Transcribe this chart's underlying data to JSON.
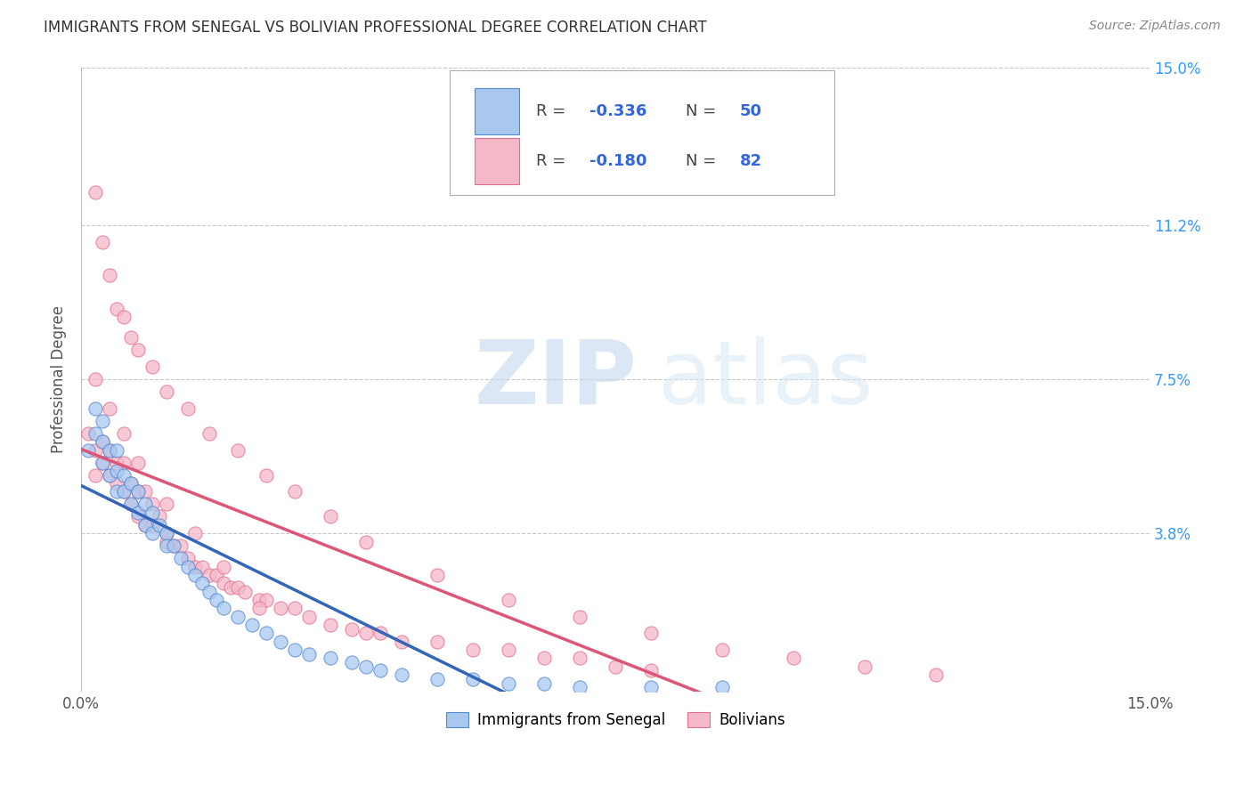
{
  "title": "IMMIGRANTS FROM SENEGAL VS BOLIVIAN PROFESSIONAL DEGREE CORRELATION CHART",
  "source": "Source: ZipAtlas.com",
  "ylabel": "Professional Degree",
  "y_ticks": [
    0.0,
    0.038,
    0.075,
    0.112,
    0.15
  ],
  "y_tick_labels": [
    "",
    "3.8%",
    "7.5%",
    "11.2%",
    "15.0%"
  ],
  "watermark_zip": "ZIP",
  "watermark_atlas": "atlas",
  "legend_r1": "R = -0.336",
  "legend_n1": "N = 50",
  "legend_r2": "R = -0.180",
  "legend_n2": "N = 82",
  "legend_label1": "Immigrants from Senegal",
  "legend_label2": "Bolivians",
  "color_blue_fill": "#a8c8f0",
  "color_blue_edge": "#5588cc",
  "color_pink_fill": "#f5b8c8",
  "color_pink_edge": "#e07090",
  "line_blue": "#3366bb",
  "line_pink": "#dd5577",
  "line_dash": "#aaaaaa",
  "senegal_x": [
    0.001,
    0.002,
    0.002,
    0.003,
    0.003,
    0.003,
    0.004,
    0.004,
    0.005,
    0.005,
    0.005,
    0.006,
    0.006,
    0.007,
    0.007,
    0.008,
    0.008,
    0.009,
    0.009,
    0.01,
    0.01,
    0.011,
    0.012,
    0.012,
    0.013,
    0.014,
    0.015,
    0.016,
    0.017,
    0.018,
    0.019,
    0.02,
    0.022,
    0.024,
    0.026,
    0.028,
    0.03,
    0.032,
    0.035,
    0.038,
    0.04,
    0.042,
    0.045,
    0.05,
    0.055,
    0.06,
    0.065,
    0.07,
    0.08,
    0.09
  ],
  "senegal_y": [
    0.058,
    0.068,
    0.062,
    0.065,
    0.06,
    0.055,
    0.058,
    0.052,
    0.058,
    0.053,
    0.048,
    0.052,
    0.048,
    0.05,
    0.045,
    0.048,
    0.043,
    0.045,
    0.04,
    0.043,
    0.038,
    0.04,
    0.038,
    0.035,
    0.035,
    0.032,
    0.03,
    0.028,
    0.026,
    0.024,
    0.022,
    0.02,
    0.018,
    0.016,
    0.014,
    0.012,
    0.01,
    0.009,
    0.008,
    0.007,
    0.006,
    0.005,
    0.004,
    0.003,
    0.003,
    0.002,
    0.002,
    0.001,
    0.001,
    0.001
  ],
  "bolivia_x": [
    0.001,
    0.002,
    0.002,
    0.003,
    0.003,
    0.004,
    0.004,
    0.005,
    0.005,
    0.006,
    0.006,
    0.007,
    0.007,
    0.008,
    0.008,
    0.009,
    0.009,
    0.01,
    0.01,
    0.011,
    0.012,
    0.012,
    0.013,
    0.014,
    0.015,
    0.016,
    0.017,
    0.018,
    0.019,
    0.02,
    0.021,
    0.022,
    0.023,
    0.025,
    0.026,
    0.028,
    0.03,
    0.032,
    0.035,
    0.038,
    0.04,
    0.042,
    0.045,
    0.05,
    0.055,
    0.06,
    0.065,
    0.07,
    0.075,
    0.08,
    0.002,
    0.003,
    0.004,
    0.005,
    0.006,
    0.007,
    0.008,
    0.01,
    0.012,
    0.015,
    0.018,
    0.022,
    0.026,
    0.03,
    0.035,
    0.04,
    0.05,
    0.06,
    0.07,
    0.08,
    0.09,
    0.1,
    0.11,
    0.12,
    0.002,
    0.004,
    0.006,
    0.008,
    0.012,
    0.016,
    0.02,
    0.025
  ],
  "bolivia_y": [
    0.062,
    0.058,
    0.052,
    0.06,
    0.055,
    0.058,
    0.052,
    0.055,
    0.05,
    0.055,
    0.048,
    0.05,
    0.045,
    0.048,
    0.042,
    0.048,
    0.04,
    0.045,
    0.04,
    0.042,
    0.038,
    0.036,
    0.035,
    0.035,
    0.032,
    0.03,
    0.03,
    0.028,
    0.028,
    0.026,
    0.025,
    0.025,
    0.024,
    0.022,
    0.022,
    0.02,
    0.02,
    0.018,
    0.016,
    0.015,
    0.014,
    0.014,
    0.012,
    0.012,
    0.01,
    0.01,
    0.008,
    0.008,
    0.006,
    0.005,
    0.12,
    0.108,
    0.1,
    0.092,
    0.09,
    0.085,
    0.082,
    0.078,
    0.072,
    0.068,
    0.062,
    0.058,
    0.052,
    0.048,
    0.042,
    0.036,
    0.028,
    0.022,
    0.018,
    0.014,
    0.01,
    0.008,
    0.006,
    0.004,
    0.075,
    0.068,
    0.062,
    0.055,
    0.045,
    0.038,
    0.03,
    0.02
  ]
}
